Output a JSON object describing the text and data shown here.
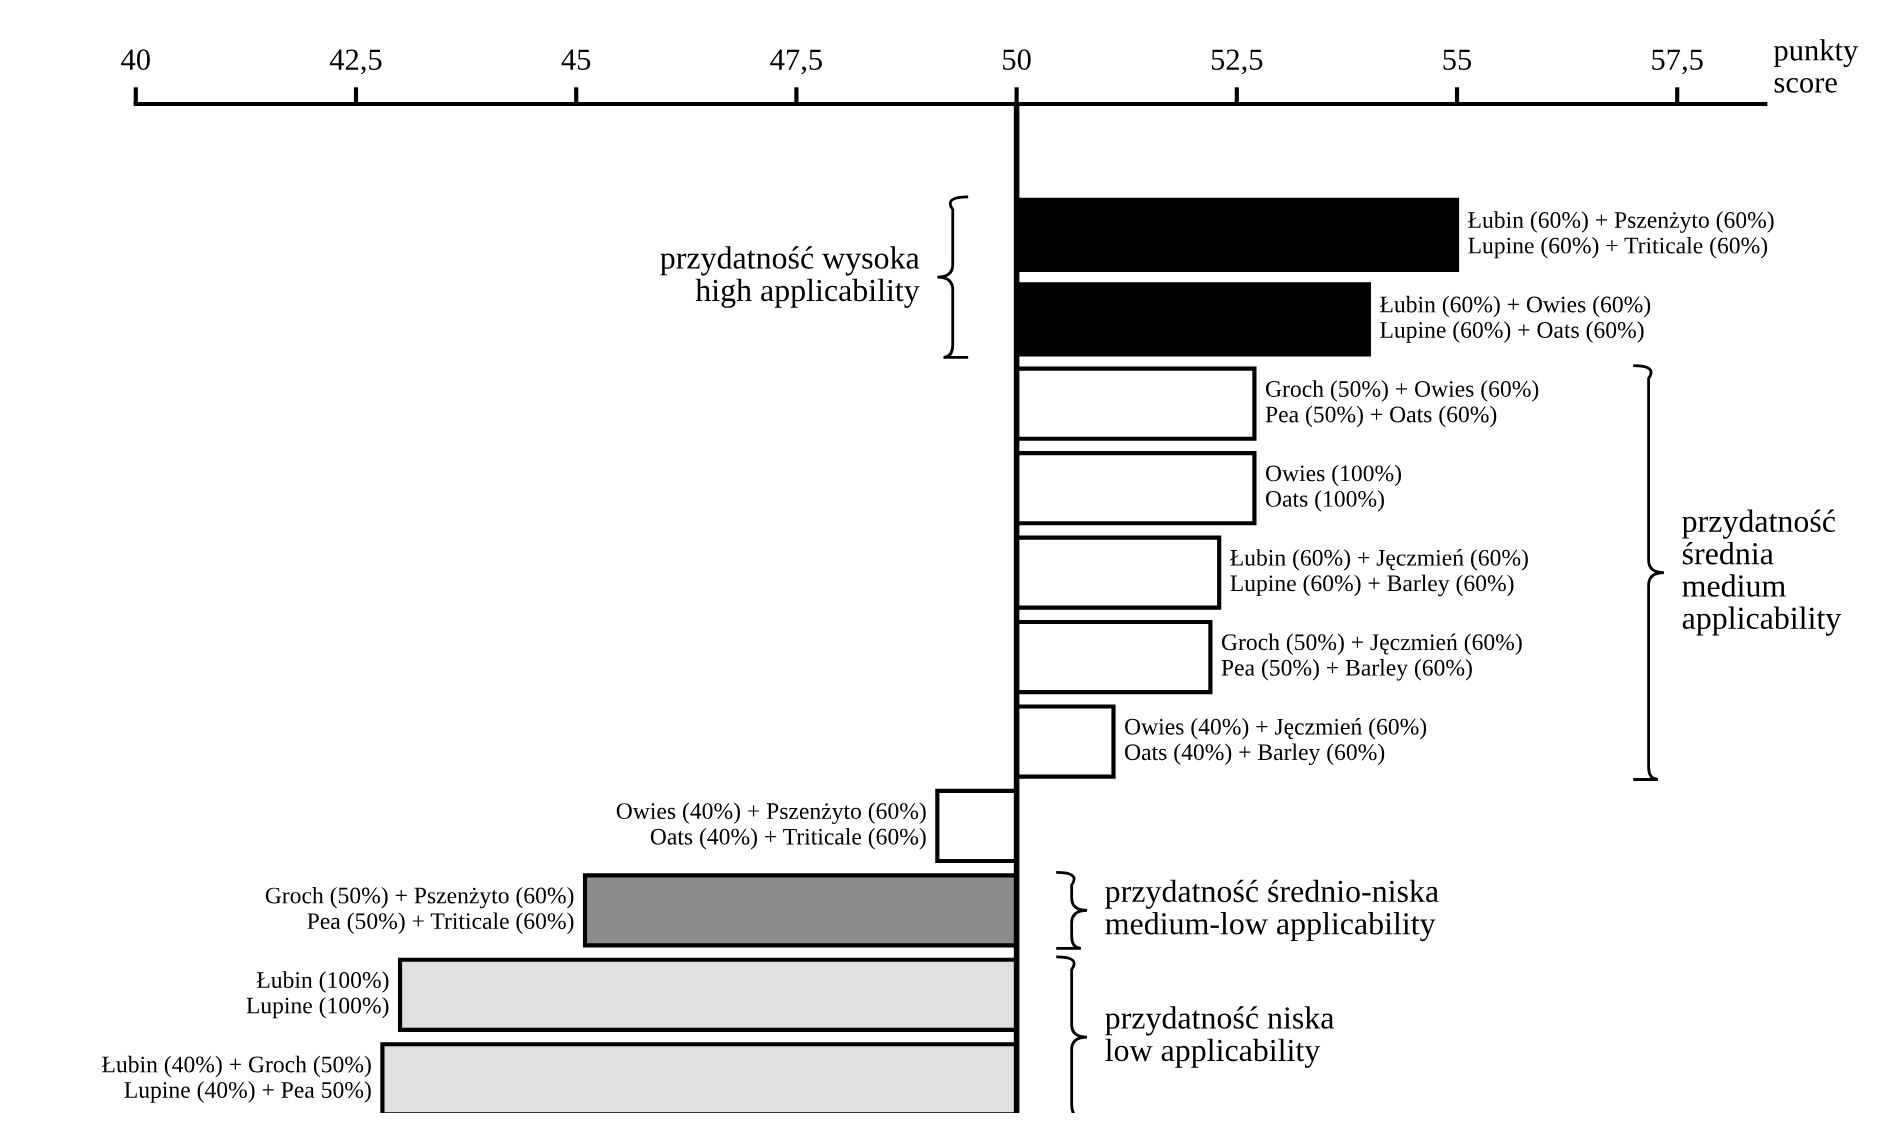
{
  "chart_data": {
    "type": "bar",
    "orientation": "horizontal",
    "xlabel": "punkty\nscore",
    "categories": [
      "Łubin (60%) + Pszenżyto (60%)\nLupine (60%) + Triticale (60%)",
      "Łubin (60%) + Owies (60%)\nLupine (60%) + Oats (60%)",
      "Groch (50%) + Owies (60%)\nPea (50%) + Oats (60%)",
      "Owies (100%)\nOats (100%)",
      "Łubin (60%) + Jęczmień (60%)\nLupine (60%) + Barley (60%)",
      "Groch (50%) + Jęczmień (60%)\nPea (50%) + Barley (60%)",
      "Owies (40%) + Jęczmień (60%)\nOats (40%) + Barley (60%)",
      "Owies (40%) + Pszenżyto (60%)\nOats (40%) + Triticale (60%)",
      "Groch (50%) + Pszenżyto (60%)\nPea (50%) + Triticale (60%)",
      "Łubin (100%)\nLupine (100%)",
      "Łubin (40%) + Groch (50%)\nLupine (40%) + Pea 50%)"
    ],
    "base": [
      50,
      50,
      50,
      50,
      50,
      50,
      50,
      50,
      50,
      50,
      50
    ],
    "values": [
      5.0,
      4.0,
      2.7,
      2.7,
      2.3,
      2.2,
      1.1,
      -0.9,
      -4.9,
      -7.0,
      -7.2
    ],
    "colors": [
      "#000000",
      "#000000",
      "#ffffff",
      "#ffffff",
      "#ffffff",
      "#ffffff",
      "#ffffff",
      "#ffffff",
      "#8c8c8c",
      "#e0e0e0",
      "#e0e0e0"
    ],
    "xlim": [
      40,
      58.5
    ],
    "xticks": [
      40,
      {
        "value": 42.5,
        "label": "42,5"
      },
      45,
      {
        "value": 47.5,
        "label": "47,5"
      },
      50,
      {
        "value": 52.5,
        "label": "52,5"
      },
      55,
      {
        "value": 57.5,
        "label": "57,5"
      }
    ],
    "annotations": [
      "przydatność wysoka\nhigh applicability",
      "przydatność\nśrednia\nmedium\napplicability",
      "przydatność średnio-niska\nmedium-low applicability",
      "przydatność niska\nlow applicability"
    ],
    "ref_lines": [
      {
        "axis": "x",
        "value": 50,
        "color": "#000000"
      }
    ],
    "grid": false,
    "legend": false
  }
}
